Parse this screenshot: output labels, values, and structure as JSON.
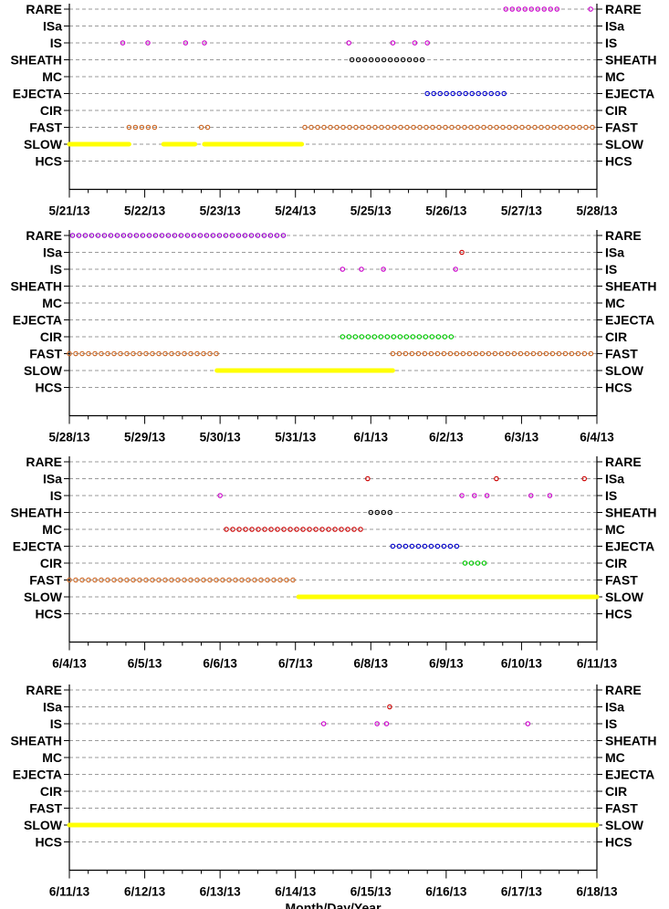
{
  "chart_data": [
    {
      "type": "scatter",
      "categories": [
        "RARE",
        "ISa",
        "IS",
        "SHEATH",
        "MC",
        "EJECTA",
        "CIR",
        "FAST",
        "SLOW",
        "HCS"
      ],
      "x_tick_labels": [
        "5/21/13",
        "5/22/13",
        "5/23/13",
        "5/24/13",
        "5/25/13",
        "5/26/13",
        "5/27/13",
        "5/28/13"
      ],
      "xlim": [
        "2013-05-21",
        "2013-05-28"
      ],
      "grid": true,
      "series": [
        {
          "category": "RARE",
          "color": "#cc00cc",
          "marker": "circle",
          "spans": [
            [
              "2013-05-26T19:00",
              "2013-05-27T12:00"
            ],
            [
              "2013-05-27T22:00",
              "2013-05-28T00:00"
            ]
          ],
          "points": []
        },
        {
          "category": "IS",
          "color": "#cc00cc",
          "marker": "circle",
          "spans": [],
          "points": [
            "2013-05-21T17:00",
            "2013-05-22T01:00",
            "2013-05-22T13:00",
            "2013-05-22T19:00",
            "2013-05-24T17:00",
            "2013-05-25T07:00",
            "2013-05-25T14:00",
            "2013-05-25T18:00"
          ]
        },
        {
          "category": "SHEATH",
          "color": "#000000",
          "marker": "circle",
          "spans": [
            [
              "2013-05-24T18:00",
              "2013-05-25T18:00"
            ]
          ],
          "points": []
        },
        {
          "category": "EJECTA",
          "color": "#0000cc",
          "marker": "circle",
          "spans": [
            [
              "2013-05-25T18:00",
              "2013-05-26T20:00"
            ]
          ],
          "points": []
        },
        {
          "category": "FAST",
          "color": "#cc6622",
          "marker": "circle",
          "spans": [
            [
              "2013-05-21T19:00",
              "2013-05-22T05:00"
            ],
            [
              "2013-05-22T18:00",
              "2013-05-22T21:00"
            ],
            [
              "2013-05-24T03:00",
              "2013-05-28T00:00"
            ]
          ],
          "points": []
        },
        {
          "category": "SLOW",
          "color": "#ffff00",
          "marker": "filled",
          "spans": [
            [
              "2013-05-21T00:00",
              "2013-05-21T19:00"
            ],
            [
              "2013-05-22T06:00",
              "2013-05-22T16:00"
            ],
            [
              "2013-05-22T19:00",
              "2013-05-24T02:00"
            ]
          ],
          "points": []
        }
      ]
    },
    {
      "type": "scatter",
      "categories": [
        "RARE",
        "ISa",
        "IS",
        "SHEATH",
        "MC",
        "EJECTA",
        "CIR",
        "FAST",
        "SLOW",
        "HCS"
      ],
      "x_tick_labels": [
        "5/28/13",
        "5/29/13",
        "5/30/13",
        "5/31/13",
        "6/1/13",
        "6/2/13",
        "6/3/13",
        "6/4/13"
      ],
      "xlim": [
        "2013-05-28",
        "2013-06-04"
      ],
      "grid": true,
      "series": [
        {
          "category": "RARE",
          "color": "#9900cc",
          "marker": "circle",
          "spans": [
            [
              "2013-05-28T01:00",
              "2013-05-30T22:00"
            ]
          ],
          "points": []
        },
        {
          "category": "ISa",
          "color": "#cc0000",
          "marker": "circle",
          "spans": [],
          "points": [
            "2013-06-02T05:00"
          ]
        },
        {
          "category": "IS",
          "color": "#cc00cc",
          "marker": "circle",
          "spans": [],
          "points": [
            "2013-05-31T15:00",
            "2013-05-31T21:00",
            "2013-06-01T04:00",
            "2013-06-02T03:00"
          ]
        },
        {
          "category": "CIR",
          "color": "#00cc00",
          "marker": "circle",
          "spans": [
            [
              "2013-05-31T15:00",
              "2013-06-02T03:00"
            ]
          ],
          "points": []
        },
        {
          "category": "FAST",
          "color": "#cc6622",
          "marker": "circle",
          "spans": [
            [
              "2013-05-28T00:00",
              "2013-05-29T23:00"
            ],
            [
              "2013-06-01T07:00",
              "2013-06-04T00:00"
            ]
          ],
          "points": []
        },
        {
          "category": "SLOW",
          "color": "#ffff00",
          "marker": "filled",
          "spans": [
            [
              "2013-05-29T23:00",
              "2013-06-01T07:00"
            ]
          ],
          "points": []
        }
      ]
    },
    {
      "type": "scatter",
      "categories": [
        "RARE",
        "ISa",
        "IS",
        "SHEATH",
        "MC",
        "EJECTA",
        "CIR",
        "FAST",
        "SLOW",
        "HCS"
      ],
      "x_tick_labels": [
        "6/4/13",
        "6/5/13",
        "6/6/13",
        "6/7/13",
        "6/8/13",
        "6/9/13",
        "6/10/13",
        "6/11/13"
      ],
      "xlim": [
        "2013-06-04",
        "2013-06-11"
      ],
      "grid": true,
      "series": [
        {
          "category": "ISa",
          "color": "#cc0000",
          "marker": "circle",
          "spans": [],
          "points": [
            "2013-06-07T23:00",
            "2013-06-09T16:00",
            "2013-06-10T20:00"
          ]
        },
        {
          "category": "IS",
          "color": "#cc00cc",
          "marker": "circle",
          "spans": [],
          "points": [
            "2013-06-06T00:00",
            "2013-06-09T05:00",
            "2013-06-09T09:00",
            "2013-06-09T13:00",
            "2013-06-10T03:00",
            "2013-06-10T09:00"
          ]
        },
        {
          "category": "SHEATH",
          "color": "#000000",
          "marker": "circle",
          "spans": [
            [
              "2013-06-08T00:00",
              "2013-06-08T07:00"
            ]
          ],
          "points": []
        },
        {
          "category": "MC",
          "color": "#cc0000",
          "marker": "circle",
          "spans": [
            [
              "2013-06-06T02:00",
              "2013-06-07T22:00"
            ]
          ],
          "points": []
        },
        {
          "category": "EJECTA",
          "color": "#0000cc",
          "marker": "circle",
          "spans": [
            [
              "2013-06-08T07:00",
              "2013-06-09T04:00"
            ]
          ],
          "points": []
        },
        {
          "category": "CIR",
          "color": "#00cc00",
          "marker": "circle",
          "spans": [
            [
              "2013-06-09T06:00",
              "2013-06-09T13:00"
            ]
          ],
          "points": []
        },
        {
          "category": "FAST",
          "color": "#cc6622",
          "marker": "circle",
          "spans": [
            [
              "2013-06-04T00:00",
              "2013-06-07T01:00"
            ]
          ],
          "points": []
        },
        {
          "category": "SLOW",
          "color": "#ffff00",
          "marker": "filled",
          "spans": [
            [
              "2013-06-07T01:00",
              "2013-06-11T00:00"
            ]
          ],
          "points": []
        }
      ]
    },
    {
      "type": "scatter",
      "categories": [
        "RARE",
        "ISa",
        "IS",
        "SHEATH",
        "MC",
        "EJECTA",
        "CIR",
        "FAST",
        "SLOW",
        "HCS"
      ],
      "x_tick_labels": [
        "6/11/13",
        "6/12/13",
        "6/13/13",
        "6/14/13",
        "6/15/13",
        "6/16/13",
        "6/17/13",
        "6/18/13"
      ],
      "xlim": [
        "2013-06-11",
        "2013-06-18"
      ],
      "xlabel": "Month/Day/Year",
      "grid": true,
      "series": [
        {
          "category": "ISa",
          "color": "#cc0000",
          "marker": "circle",
          "spans": [],
          "points": [
            "2013-06-15T06:00"
          ]
        },
        {
          "category": "IS",
          "color": "#cc00cc",
          "marker": "circle",
          "spans": [],
          "points": [
            "2013-06-14T09:00",
            "2013-06-15T02:00",
            "2013-06-15T05:00",
            "2013-06-17T02:00"
          ]
        },
        {
          "category": "SLOW",
          "color": "#ffff00",
          "marker": "filled",
          "spans": [
            [
              "2013-06-11T00:00",
              "2013-06-18T00:00"
            ]
          ],
          "points": []
        }
      ]
    }
  ]
}
